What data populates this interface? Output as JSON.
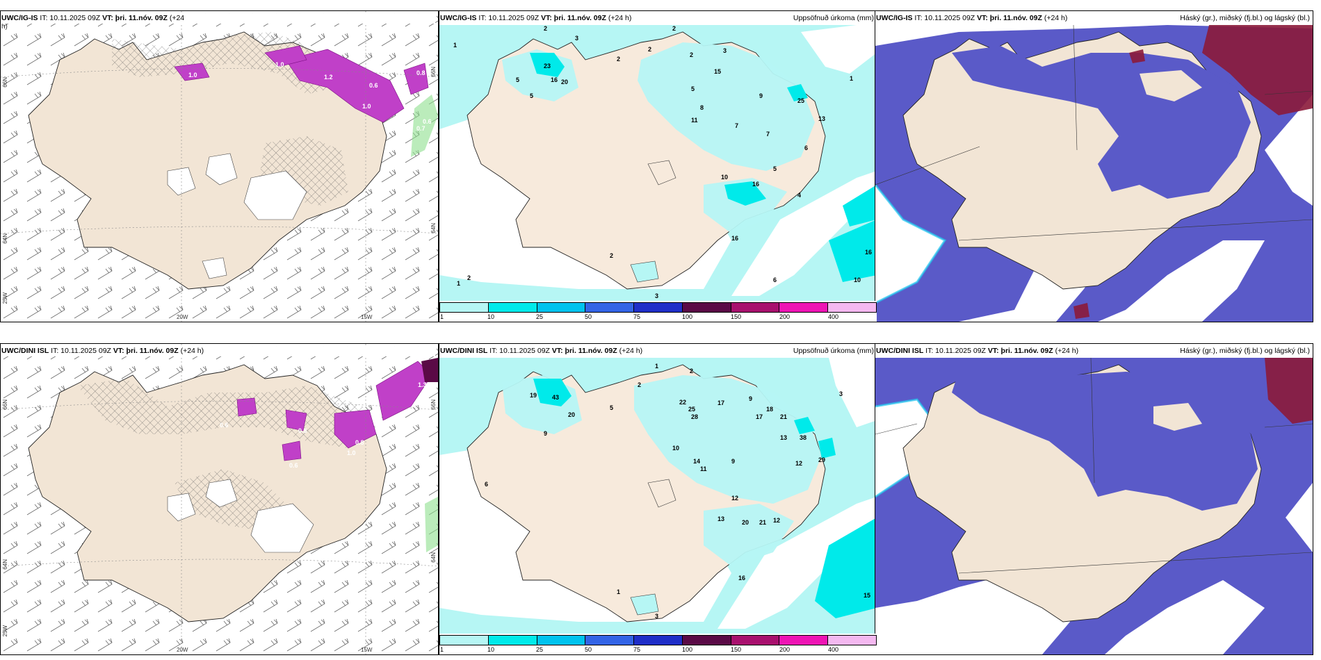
{
  "colors": {
    "land": "#f2e5d5",
    "precip_light": "#b6f6f4",
    "precip_mid": "#00eaea",
    "snow_low": "#5a5ac8",
    "snow_high": "#8b1a3a",
    "wind_purple": "#c040c8",
    "legend": [
      "#b6f6f4",
      "#00eaea",
      "#00c3ee",
      "#3364e6",
      "#1f2ec8",
      "#5a0a46",
      "#a8106e",
      "#ee14b4",
      "#f4b8f0"
    ]
  },
  "legend_ticks": [
    "1",
    "10",
    "25",
    "50",
    "75",
    "100",
    "150",
    "200",
    "400"
  ],
  "axis": {
    "lat_top": "66N",
    "lat_bottom": "64N",
    "lon_w25": "25W",
    "lon_w20": "20W",
    "lon_w15": "15W"
  },
  "rows": [
    {
      "wind_title": "UWC/IG-IS",
      "wind_meta": "IT: 10.11.2025 09Z",
      "wind_vt": "VT: þri. 11.nóv. 09Z",
      "wind_lead": "(+24",
      "wind_lead2": "h)",
      "precip_title": "UWC/IG-IS",
      "precip_meta": "IT: 10.11.2025 09Z",
      "precip_vt": "VT: þri. 11.nóv. 09Z",
      "precip_lead": "(+24 h)",
      "precip_right": "Uppsöfnuð úrkoma (mm)",
      "snow_title": "UWC/IG-IS",
      "snow_meta": "IT: 10.11.2025 09Z",
      "snow_vt": "VT: þri. 11.nóv. 09Z",
      "snow_lead": "(+24 h)",
      "snow_right": "Háský (gr.), miðský (fj.bl.) og lágský (bl.)",
      "precip_values": [
        {
          "v": "2",
          "p": [
            150,
            8
          ]
        },
        {
          "v": "3",
          "p": [
            195,
            22
          ]
        },
        {
          "v": "1",
          "p": [
            20,
            32
          ]
        },
        {
          "v": "2",
          "p": [
            255,
            52
          ]
        },
        {
          "v": "23",
          "p": [
            150,
            62
          ]
        },
        {
          "v": "5",
          "p": [
            110,
            82
          ]
        },
        {
          "v": "16",
          "p": [
            160,
            82
          ]
        },
        {
          "v": "20",
          "p": [
            175,
            85
          ]
        },
        {
          "v": "5",
          "p": [
            130,
            105
          ]
        },
        {
          "v": "2",
          "p": [
            335,
            8
          ]
        },
        {
          "v": "2",
          "p": [
            360,
            46
          ]
        },
        {
          "v": "2",
          "p": [
            300,
            38
          ]
        },
        {
          "v": "3",
          "p": [
            408,
            40
          ]
        },
        {
          "v": "15",
          "p": [
            395,
            70
          ]
        },
        {
          "v": "5",
          "p": [
            362,
            95
          ]
        },
        {
          "v": "8",
          "p": [
            375,
            122
          ]
        },
        {
          "v": "11",
          "p": [
            362,
            140
          ]
        },
        {
          "v": "7",
          "p": [
            425,
            148
          ]
        },
        {
          "v": "10",
          "p": [
            405,
            222
          ]
        },
        {
          "v": "16",
          "p": [
            450,
            232
          ]
        },
        {
          "v": "25",
          "p": [
            515,
            112
          ]
        },
        {
          "v": "13",
          "p": [
            545,
            138
          ]
        },
        {
          "v": "7",
          "p": [
            470,
            160
          ]
        },
        {
          "v": "9",
          "p": [
            460,
            105
          ]
        },
        {
          "v": "6",
          "p": [
            525,
            180
          ]
        },
        {
          "v": "4",
          "p": [
            515,
            248
          ]
        },
        {
          "v": "5",
          "p": [
            480,
            210
          ]
        },
        {
          "v": "16",
          "p": [
            420,
            310
          ]
        },
        {
          "v": "2",
          "p": [
            245,
            335
          ]
        },
        {
          "v": "6",
          "p": [
            480,
            370
          ]
        },
        {
          "v": "16",
          "p": [
            612,
            330
          ]
        },
        {
          "v": "10",
          "p": [
            596,
            370
          ]
        },
        {
          "v": "1",
          "p": [
            25,
            375
          ]
        },
        {
          "v": "2",
          "p": [
            40,
            367
          ]
        },
        {
          "v": "3",
          "p": [
            310,
            393
          ]
        },
        {
          "v": "1",
          "p": [
            590,
            80
          ]
        }
      ],
      "wind_values": [
        {
          "v": "1.0",
          "p": [
            395,
            60
          ]
        },
        {
          "v": "1.2",
          "p": [
            465,
            78
          ]
        },
        {
          "v": "0.6",
          "p": [
            530,
            90
          ]
        },
        {
          "v": "1.0",
          "p": [
            270,
            75
          ]
        },
        {
          "v": "1.0",
          "p": [
            520,
            120
          ]
        },
        {
          "v": "0.8",
          "p": [
            598,
            72
          ]
        },
        {
          "v": "0.6",
          "p": [
            607,
            142
          ]
        },
        {
          "v": "0.7",
          "p": [
            598,
            152
          ]
        }
      ]
    },
    {
      "wind_title": "UWC/DINI ISL",
      "wind_meta": "IT: 10.11.2025 09Z",
      "wind_vt": "VT: þri. 11.nóv. 09Z",
      "wind_lead": "(+24 h)",
      "wind_lead2": "",
      "precip_title": "UWC/DINI ISL",
      "precip_meta": "IT: 10.11.2025 09Z",
      "precip_vt": "VT: þri. 11.nóv. 09Z",
      "precip_lead": "(+24 h)",
      "precip_right": "Uppsöfnuð úrkoma (mm)",
      "snow_title": "UWC/DINI ISL",
      "snow_meta": "IT: 10.11.2025 09Z",
      "snow_vt": "VT: þri. 11.nóv. 09Z",
      "snow_lead": "(+24 h)",
      "snow_right": "Háský (gr.), miðský (fj.bl.) og lágský (bl.)",
      "precip_values": [
        {
          "v": "1",
          "p": [
            310,
            15
          ]
        },
        {
          "v": "2",
          "p": [
            360,
            22
          ]
        },
        {
          "v": "2",
          "p": [
            285,
            42
          ]
        },
        {
          "v": "19",
          "p": [
            130,
            57
          ]
        },
        {
          "v": "43",
          "p": [
            162,
            60
          ]
        },
        {
          "v": "20",
          "p": [
            185,
            85
          ]
        },
        {
          "v": "9",
          "p": [
            150,
            112
          ]
        },
        {
          "v": "5",
          "p": [
            245,
            75
          ]
        },
        {
          "v": "22",
          "p": [
            345,
            67
          ]
        },
        {
          "v": "25",
          "p": [
            358,
            77
          ]
        },
        {
          "v": "28",
          "p": [
            362,
            88
          ]
        },
        {
          "v": "17",
          "p": [
            400,
            68
          ]
        },
        {
          "v": "9",
          "p": [
            445,
            62
          ]
        },
        {
          "v": "18",
          "p": [
            470,
            77
          ]
        },
        {
          "v": "17",
          "p": [
            455,
            88
          ]
        },
        {
          "v": "21",
          "p": [
            490,
            88
          ]
        },
        {
          "v": "38",
          "p": [
            518,
            118
          ]
        },
        {
          "v": "13",
          "p": [
            490,
            118
          ]
        },
        {
          "v": "29",
          "p": [
            545,
            150
          ]
        },
        {
          "v": "12",
          "p": [
            512,
            155
          ]
        },
        {
          "v": "10",
          "p": [
            335,
            133
          ]
        },
        {
          "v": "14",
          "p": [
            365,
            152
          ]
        },
        {
          "v": "11",
          "p": [
            375,
            163
          ]
        },
        {
          "v": "9",
          "p": [
            420,
            152
          ]
        },
        {
          "v": "12",
          "p": [
            420,
            205
          ]
        },
        {
          "v": "13",
          "p": [
            400,
            235
          ]
        },
        {
          "v": "20",
          "p": [
            435,
            240
          ]
        },
        {
          "v": "21",
          "p": [
            460,
            240
          ]
        },
        {
          "v": "12",
          "p": [
            480,
            237
          ]
        },
        {
          "v": "16",
          "p": [
            430,
            320
          ]
        },
        {
          "v": "1",
          "p": [
            255,
            340
          ]
        },
        {
          "v": "15",
          "p": [
            610,
            345
          ]
        },
        {
          "v": "3",
          "p": [
            310,
            375
          ]
        },
        {
          "v": "6",
          "p": [
            65,
            185
          ]
        },
        {
          "v": "3",
          "p": [
            575,
            55
          ]
        }
      ],
      "wind_values": [
        {
          "v": "0.6",
          "p": [
            315,
            100
          ]
        },
        {
          "v": "0.8",
          "p": [
            428,
            108
          ]
        },
        {
          "v": "1.3",
          "p": [
            600,
            42
          ]
        },
        {
          "v": "0.8",
          "p": [
            510,
            125
          ]
        },
        {
          "v": "1.0",
          "p": [
            498,
            140
          ]
        },
        {
          "v": "0.6",
          "p": [
            415,
            158
          ]
        }
      ]
    }
  ]
}
